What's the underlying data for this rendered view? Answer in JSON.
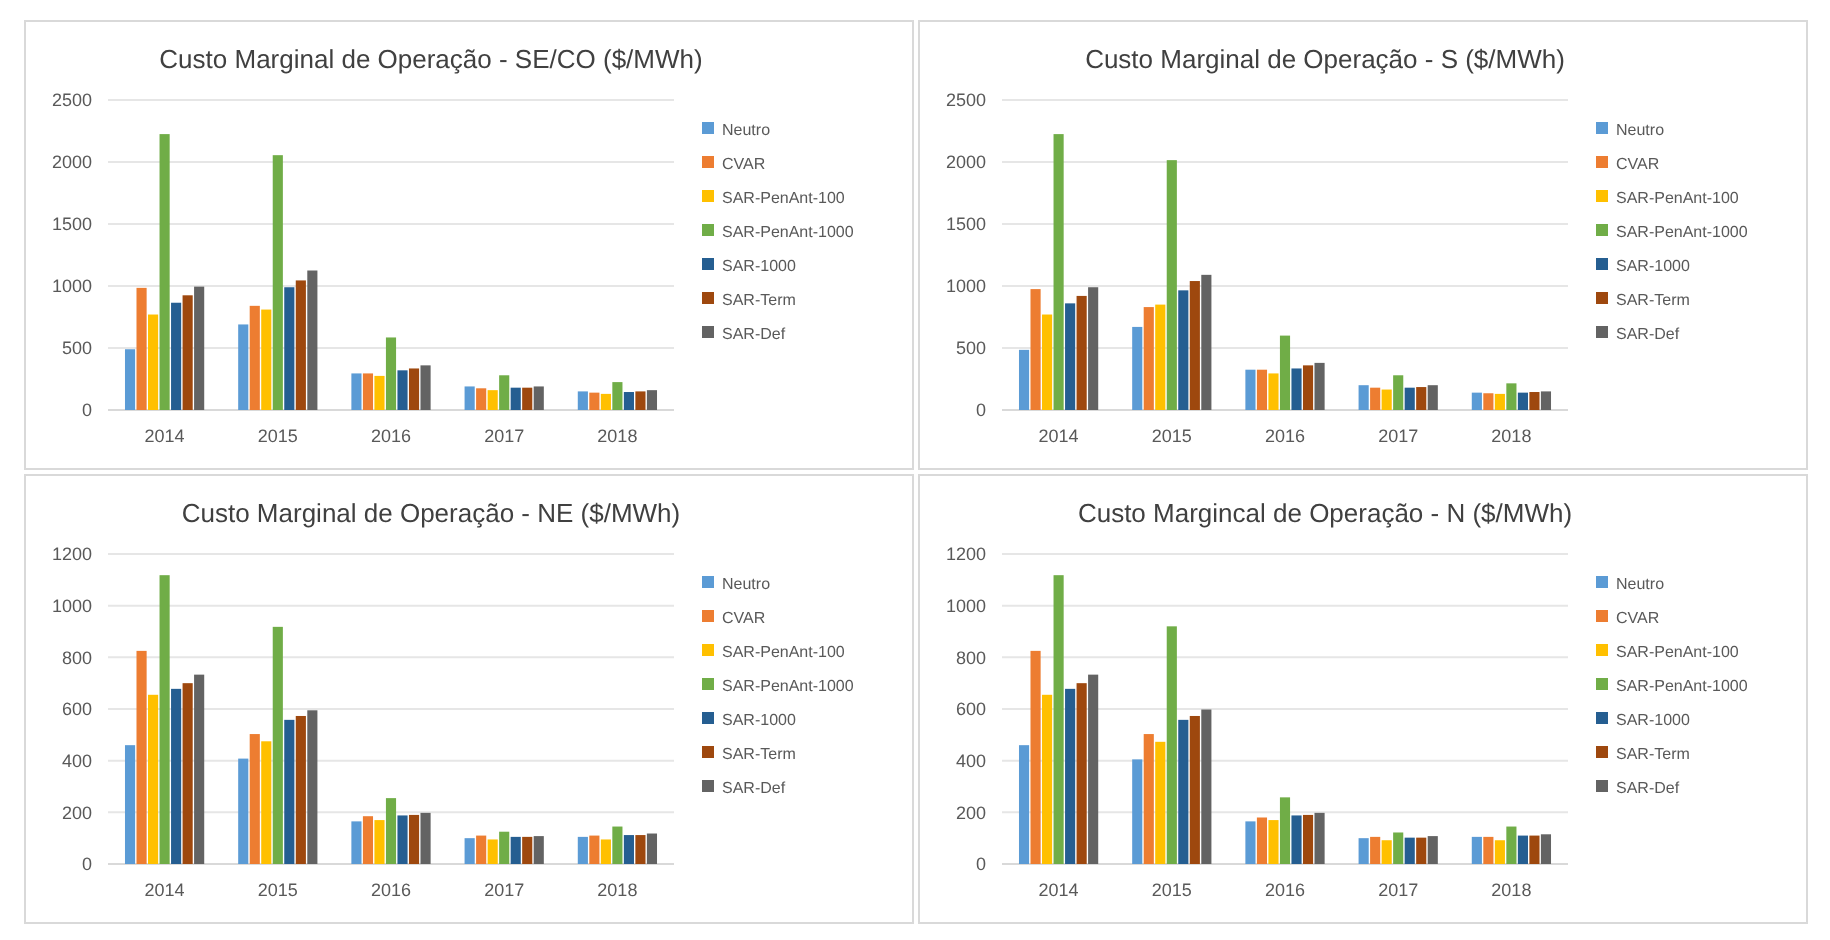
{
  "chart_data": [
    {
      "type": "bar",
      "title": "Custo Marginal de Operação - SE/CO ($/MWh)",
      "categories": [
        "2014",
        "2015",
        "2016",
        "2017",
        "2018"
      ],
      "ylim": [
        0,
        2500
      ],
      "yticks": [
        0,
        500,
        1000,
        1500,
        2000,
        2500
      ],
      "grid": "y",
      "legend": "right",
      "series": [
        {
          "name": "Neutro",
          "color": "#5b9bd5",
          "values": [
            490,
            690,
            295,
            190,
            150
          ]
        },
        {
          "name": "CVAR",
          "color": "#ed7d31",
          "values": [
            985,
            840,
            295,
            175,
            140
          ]
        },
        {
          "name": "SAR-PenAnt-100",
          "color": "#ffc000",
          "values": [
            770,
            810,
            275,
            160,
            130
          ]
        },
        {
          "name": "SAR-PenAnt-1000",
          "color": "#70ad47",
          "values": [
            2225,
            2055,
            585,
            280,
            225
          ]
        },
        {
          "name": "SAR-1000",
          "color": "#255e91",
          "values": [
            865,
            990,
            320,
            180,
            145
          ]
        },
        {
          "name": "SAR-Term",
          "color": "#9e480e",
          "values": [
            925,
            1045,
            335,
            180,
            150
          ]
        },
        {
          "name": "SAR-Def",
          "color": "#636363",
          "values": [
            995,
            1125,
            360,
            190,
            160
          ]
        }
      ]
    },
    {
      "type": "bar",
      "title": "Custo Marginal de Operação - S ($/MWh)",
      "categories": [
        "2014",
        "2015",
        "2016",
        "2017",
        "2018"
      ],
      "ylim": [
        0,
        2500
      ],
      "yticks": [
        0,
        500,
        1000,
        1500,
        2000,
        2500
      ],
      "grid": "y",
      "legend": "right",
      "series": [
        {
          "name": "Neutro",
          "color": "#5b9bd5",
          "values": [
            485,
            670,
            325,
            200,
            140
          ]
        },
        {
          "name": "CVAR",
          "color": "#ed7d31",
          "values": [
            975,
            830,
            325,
            180,
            135
          ]
        },
        {
          "name": "SAR-PenAnt-100",
          "color": "#ffc000",
          "values": [
            770,
            850,
            295,
            165,
            130
          ]
        },
        {
          "name": "SAR-PenAnt-1000",
          "color": "#70ad47",
          "values": [
            2225,
            2015,
            600,
            280,
            215
          ]
        },
        {
          "name": "SAR-1000",
          "color": "#255e91",
          "values": [
            860,
            965,
            335,
            180,
            140
          ]
        },
        {
          "name": "SAR-Term",
          "color": "#9e480e",
          "values": [
            920,
            1040,
            360,
            185,
            145
          ]
        },
        {
          "name": "SAR-Def",
          "color": "#636363",
          "values": [
            990,
            1090,
            380,
            200,
            150
          ]
        }
      ]
    },
    {
      "type": "bar",
      "title": "Custo Marginal de Operação - NE ($/MWh)",
      "categories": [
        "2014",
        "2015",
        "2016",
        "2017",
        "2018"
      ],
      "ylim": [
        0,
        1200
      ],
      "yticks": [
        0,
        200,
        400,
        600,
        800,
        1000,
        1200
      ],
      "grid": "y",
      "legend": "right",
      "series": [
        {
          "name": "Neutro",
          "color": "#5b9bd5",
          "values": [
            460,
            408,
            165,
            100,
            105
          ]
        },
        {
          "name": "CVAR",
          "color": "#ed7d31",
          "values": [
            825,
            503,
            185,
            110,
            110
          ]
        },
        {
          "name": "SAR-PenAnt-100",
          "color": "#ffc000",
          "values": [
            655,
            475,
            170,
            95,
            95
          ]
        },
        {
          "name": "SAR-PenAnt-1000",
          "color": "#70ad47",
          "values": [
            1118,
            918,
            255,
            125,
            145
          ]
        },
        {
          "name": "SAR-1000",
          "color": "#255e91",
          "values": [
            678,
            558,
            188,
            105,
            112
          ]
        },
        {
          "name": "SAR-Term",
          "color": "#9e480e",
          "values": [
            700,
            573,
            190,
            105,
            112
          ]
        },
        {
          "name": "SAR-Def",
          "color": "#636363",
          "values": [
            733,
            595,
            198,
            108,
            118
          ]
        }
      ]
    },
    {
      "type": "bar",
      "title": "Custo Margincal de Operação - N ($/MWh)",
      "categories": [
        "2014",
        "2015",
        "2016",
        "2017",
        "2018"
      ],
      "ylim": [
        0,
        1200
      ],
      "yticks": [
        0,
        200,
        400,
        600,
        800,
        1000,
        1200
      ],
      "grid": "y",
      "legend": "right",
      "series": [
        {
          "name": "Neutro",
          "color": "#5b9bd5",
          "values": [
            460,
            405,
            165,
            100,
            105
          ]
        },
        {
          "name": "CVAR",
          "color": "#ed7d31",
          "values": [
            825,
            503,
            180,
            105,
            105
          ]
        },
        {
          "name": "SAR-PenAnt-100",
          "color": "#ffc000",
          "values": [
            655,
            473,
            170,
            92,
            92
          ]
        },
        {
          "name": "SAR-PenAnt-1000",
          "color": "#70ad47",
          "values": [
            1118,
            920,
            258,
            122,
            145
          ]
        },
        {
          "name": "SAR-1000",
          "color": "#255e91",
          "values": [
            678,
            558,
            188,
            102,
            110
          ]
        },
        {
          "name": "SAR-Term",
          "color": "#9e480e",
          "values": [
            700,
            573,
            190,
            102,
            110
          ]
        },
        {
          "name": "SAR-Def",
          "color": "#636363",
          "values": [
            733,
            598,
            198,
            108,
            115
          ]
        }
      ]
    }
  ]
}
